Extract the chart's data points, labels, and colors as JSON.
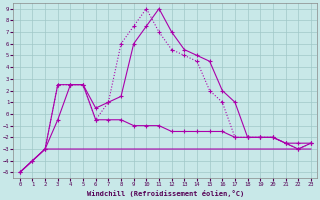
{
  "xlabel": "Windchill (Refroidissement éolien,°C)",
  "xlim": [
    -0.5,
    23.5
  ],
  "ylim": [
    -5.5,
    9.5
  ],
  "xticks": [
    0,
    1,
    2,
    3,
    4,
    5,
    6,
    7,
    8,
    9,
    10,
    11,
    12,
    13,
    14,
    15,
    16,
    17,
    18,
    19,
    20,
    21,
    22,
    23
  ],
  "yticks": [
    -5,
    -4,
    -3,
    -2,
    -1,
    0,
    1,
    2,
    3,
    4,
    5,
    6,
    7,
    8,
    9
  ],
  "background_color": "#c8e8e8",
  "grid_color": "#a0c8c8",
  "line_color": "#aa00aa",
  "line1_x": [
    0,
    1,
    2,
    3,
    4,
    5,
    6,
    7,
    8,
    9,
    10,
    11,
    12,
    13,
    14,
    15,
    16,
    17,
    18,
    19,
    20,
    21,
    22,
    23
  ],
  "line1_y": [
    -5,
    -4,
    -3,
    2.5,
    2.5,
    2.5,
    0.5,
    1.0,
    1.5,
    6.0,
    7.5,
    9.0,
    7.0,
    5.5,
    5.0,
    4.5,
    2.0,
    1.0,
    -2.0,
    -2.0,
    -2.0,
    -2.5,
    -3.0,
    -2.5
  ],
  "line2_x": [
    0,
    1,
    2,
    3,
    4,
    5,
    6,
    7,
    8,
    9,
    10,
    11,
    12,
    13,
    14,
    15,
    16,
    17,
    18,
    19,
    20,
    21,
    22,
    23
  ],
  "line2_y": [
    -5,
    -4,
    -3,
    -0.5,
    2.5,
    2.5,
    -0.5,
    -0.5,
    -0.5,
    -1.0,
    -1.0,
    -1.0,
    -1.5,
    -1.5,
    -1.5,
    -1.5,
    -1.5,
    -2.0,
    -2.0,
    -2.0,
    -2.0,
    -2.5,
    -2.5,
    -2.5
  ],
  "line3_x": [
    0,
    1,
    2,
    3,
    4,
    5,
    6,
    7,
    8,
    9,
    10,
    11,
    12,
    13,
    14,
    15,
    16,
    17,
    18,
    19,
    20,
    21,
    22,
    23
  ],
  "line3_y": [
    -5,
    -4,
    -3,
    -3.0,
    -3.0,
    -3.0,
    -3.0,
    -3.0,
    -3.0,
    -3.0,
    -3.0,
    -3.0,
    -3.0,
    -3.0,
    -3.0,
    -3.0,
    -3.0,
    -3.0,
    -3.0,
    -3.0,
    -3.0,
    -3.0,
    -3.0,
    -3.0
  ],
  "line4_x": [
    2,
    3,
    4,
    5,
    6,
    7,
    8,
    9,
    10,
    11,
    12,
    13,
    14,
    15,
    16,
    17,
    18,
    19,
    20,
    21,
    22,
    23
  ],
  "line4_y": [
    -3,
    2.5,
    2.5,
    2.5,
    -0.5,
    1.0,
    6.0,
    7.5,
    9.0,
    7.0,
    5.5,
    5.0,
    4.5,
    2.0,
    1.0,
    -2.0,
    -2.0,
    -2.0,
    -2.0,
    -2.5,
    -3.0,
    -2.5
  ]
}
